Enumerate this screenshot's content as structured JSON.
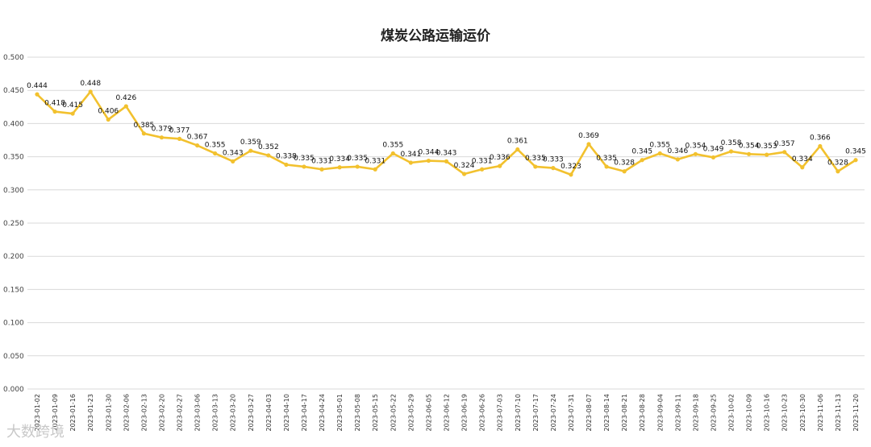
{
  "chart_data": {
    "type": "line",
    "title": "煤炭公路运输运价",
    "xlabel": "",
    "ylabel": "",
    "ylim": [
      0,
      0.5
    ],
    "yticks": [
      "0.000",
      "0.050",
      "0.100",
      "0.150",
      "0.200",
      "0.250",
      "0.300",
      "0.350",
      "0.400",
      "0.450",
      "0.500"
    ],
    "grid": true,
    "legend": "none",
    "color": "#f2c12e",
    "x": [
      "2023-01-02",
      "2023-01-09",
      "2023-01-16",
      "2023-01-23",
      "2023-01-30",
      "2023-02-06",
      "2023-02-13",
      "2023-02-20",
      "2023-02-27",
      "2023-03-06",
      "2023-03-13",
      "2023-03-20",
      "2023-03-27",
      "2023-04-03",
      "2023-04-10",
      "2023-04-17",
      "2023-04-24",
      "2023-05-01",
      "2023-05-08",
      "2023-05-15",
      "2023-05-22",
      "2023-05-29",
      "2023-06-05",
      "2023-06-12",
      "2023-06-19",
      "2023-06-26",
      "2023-07-03",
      "2023-07-10",
      "2023-07-17",
      "2023-07-24",
      "2023-07-31",
      "2023-08-07",
      "2023-08-14",
      "2023-08-21",
      "2023-08-28",
      "2023-09-04",
      "2023-09-11",
      "2023-09-18",
      "2023-09-25",
      "2023-10-02",
      "2023-10-09",
      "2023-10-16",
      "2023-10-23",
      "2023-10-30",
      "2023-11-06",
      "2023-11-13",
      "2023-11-20"
    ],
    "values": [
      0.444,
      0.418,
      0.415,
      0.448,
      0.406,
      0.426,
      0.385,
      0.379,
      0.377,
      0.367,
      0.355,
      0.343,
      0.359,
      0.352,
      0.338,
      0.335,
      0.331,
      0.334,
      0.335,
      0.331,
      0.355,
      0.341,
      0.344,
      0.343,
      0.324,
      0.331,
      0.336,
      0.361,
      0.335,
      0.333,
      0.323,
      0.369,
      0.335,
      0.328,
      0.345,
      0.355,
      0.346,
      0.354,
      0.349,
      0.358,
      0.354,
      0.353,
      0.357,
      0.334,
      0.366,
      0.328,
      0.345
    ],
    "data_labels": [
      "0.444",
      "0.418",
      "0.415",
      "0.448",
      "0.406",
      "0.426",
      "0.385",
      "0.379",
      "0.377",
      "0.367",
      "0.355",
      "0.343",
      "0.359",
      "0.352",
      "0.338",
      "0.335",
      "0.331",
      "0.334",
      "0.335",
      "0.331",
      "0.355",
      "0.341",
      "0.344",
      "0.343",
      "0.324",
      "0.331",
      "0.336",
      "0.361",
      "0.335",
      "0.333",
      "0.323",
      "0.369",
      "0.335",
      "0.328",
      "0.345",
      "0.355",
      "0.346",
      "0.354",
      "0.349",
      "0.358",
      "0.354",
      "0.353",
      "0.357",
      "0.334",
      "0.366",
      "0.328",
      "0.345"
    ]
  },
  "watermark": {
    "text": "大数跨境"
  }
}
